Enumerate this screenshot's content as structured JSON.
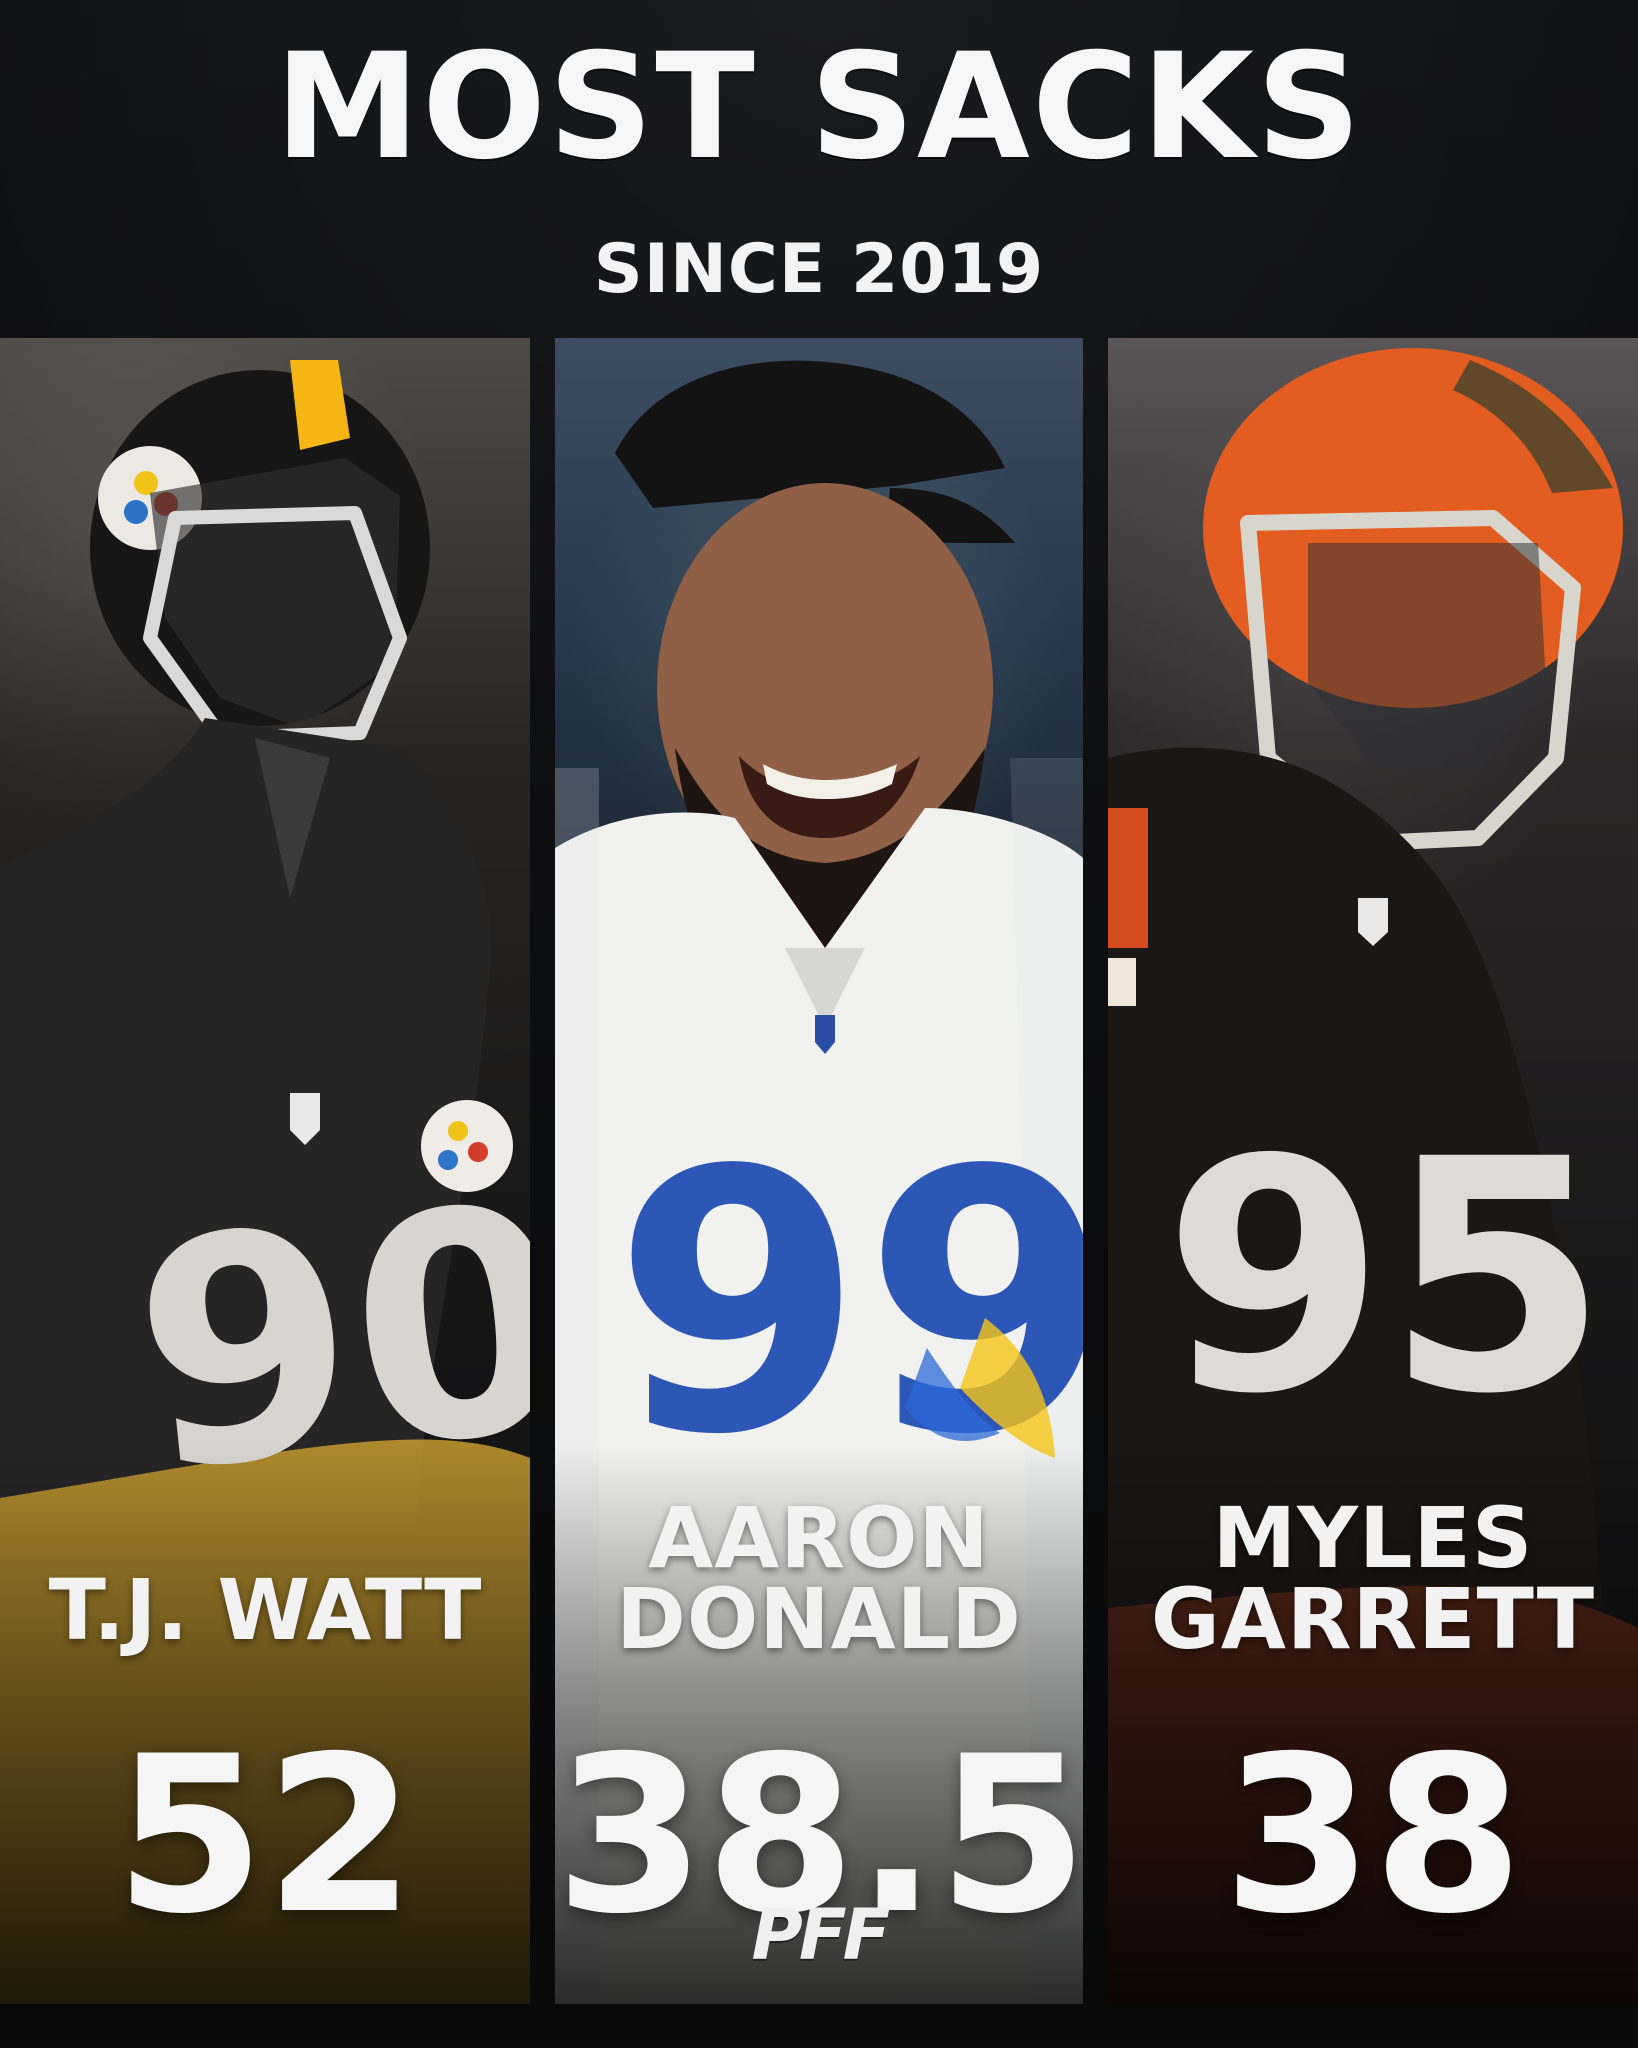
{
  "header": {
    "title": "MOST SACKS",
    "subtitle": "SINCE 2019"
  },
  "players": [
    {
      "name_lines": [
        "T.J. WATT"
      ],
      "sacks": "52",
      "helmet_color": "#141414",
      "stripe_color": "#f5b514",
      "jersey_color": "#232323",
      "pants_color": "#b9902e",
      "number": "90",
      "number_color": "#d7d5d0"
    },
    {
      "name_lines": [
        "AARON",
        "DONALD"
      ],
      "sacks": "38.5",
      "cap_color": "#131313",
      "jersey_color": "#f1f1ef",
      "number": "99",
      "number_color": "#2d57b7",
      "accent_color": "#f5c518"
    },
    {
      "name_lines": [
        "MYLES",
        "GARRETT"
      ],
      "sacks": "38",
      "helmet_color": "#e25d1f",
      "jersey_color": "#1b1715",
      "number": "95",
      "number_color": "#dedad5",
      "accent_color": "#d54d1f"
    }
  ],
  "brand": {
    "logo_text": "PFF"
  }
}
